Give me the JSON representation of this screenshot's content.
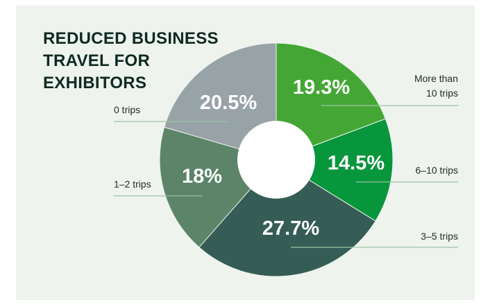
{
  "title_lines": [
    "REDUCED BUSINESS",
    "TRAVEL FOR",
    "EXHIBITORS"
  ],
  "chart_data": {
    "type": "pie",
    "donut": true,
    "title": "REDUCED BUSINESS TRAVEL FOR EXHIBITORS",
    "categories": [
      "More than 10 trips",
      "6–10 trips",
      "3–5 trips",
      "1–2 trips",
      "0 trips"
    ],
    "values": [
      19.3,
      14.5,
      27.7,
      18,
      20.5
    ],
    "value_labels": [
      "19.3%",
      "14.5%",
      "27.7%",
      "18%",
      "20.5%"
    ],
    "category_label_lines": [
      [
        "More than",
        "10 trips"
      ],
      [
        "6–10 trips"
      ],
      [
        "3–5 trips"
      ],
      [
        "1–2 trips"
      ],
      [
        "0 trips"
      ]
    ],
    "colors": [
      "#44a735",
      "#07963c",
      "#355c55",
      "#5b8468",
      "#98a3a7"
    ],
    "background": "#eef3ee"
  }
}
